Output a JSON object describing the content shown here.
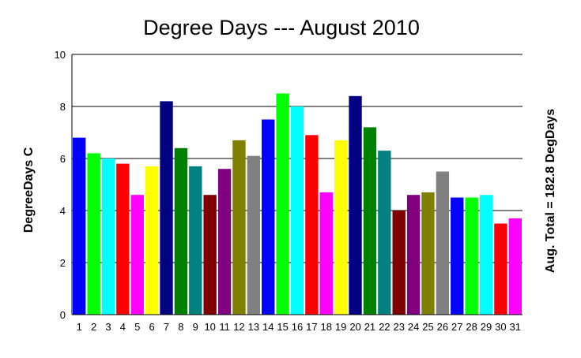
{
  "chart_data": {
    "type": "bar",
    "title": "Degree Days --- August 2010",
    "xlabel": "",
    "ylabel": "DegreeDays C",
    "right_label": "Aug. Total = 182.8 DegDays",
    "ylim": [
      0,
      10
    ],
    "yticks": [
      "0",
      "2",
      "4",
      "6",
      "8",
      "10"
    ],
    "grid": "horizontal",
    "categories": [
      "1",
      "2",
      "3",
      "4",
      "5",
      "6",
      "7",
      "8",
      "9",
      "10",
      "11",
      "12",
      "13",
      "14",
      "15",
      "16",
      "17",
      "18",
      "19",
      "20",
      "21",
      "22",
      "23",
      "24",
      "25",
      "26",
      "27",
      "28",
      "29",
      "30",
      "31"
    ],
    "values": [
      6.8,
      6.2,
      6.0,
      5.8,
      4.6,
      5.7,
      8.2,
      6.4,
      5.7,
      4.6,
      5.6,
      6.7,
      6.1,
      7.5,
      8.5,
      8.0,
      6.9,
      4.7,
      6.7,
      8.4,
      7.2,
      6.3,
      4.0,
      4.6,
      4.7,
      5.5,
      4.5,
      4.5,
      4.6,
      3.5,
      3.7
    ],
    "colors": [
      "#0000ff",
      "#00ff00",
      "#00ffff",
      "#ff0000",
      "#ff00ff",
      "#ffff00",
      "#000080",
      "#008000",
      "#008080",
      "#800000",
      "#800080",
      "#808000",
      "#808080",
      "#0000ff",
      "#00ff00",
      "#00ffff",
      "#ff0000",
      "#ff00ff",
      "#ffff00",
      "#000080",
      "#008000",
      "#008080",
      "#800000",
      "#800080",
      "#808000",
      "#808080",
      "#0000ff",
      "#00ff00",
      "#00ffff",
      "#ff0000",
      "#ff00ff"
    ]
  }
}
